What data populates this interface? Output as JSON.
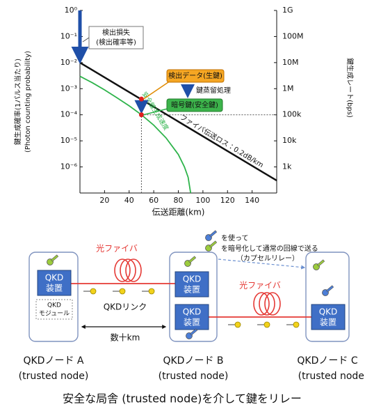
{
  "chart_data": {
    "type": "line",
    "xlabel": "伝送距離(km)",
    "ylabel": [
      "鍵生成確率(1パルス当たり)",
      "(Photon counting probability)"
    ],
    "y2label": "鍵生成レート(bps)",
    "xlim": [
      0,
      160
    ],
    "xticks": [
      20,
      40,
      60,
      80,
      100,
      120,
      140
    ],
    "ylim": [
      1e-07,
      1
    ],
    "ylog": true,
    "yticks": [
      {
        "value": 1,
        "label": "10⁰"
      },
      {
        "value": 0.1,
        "label": "10⁻¹"
      },
      {
        "value": 0.01,
        "label": "10⁻²"
      },
      {
        "value": 0.001,
        "label": "10⁻³"
      },
      {
        "value": 0.0001,
        "label": "10⁻⁴"
      },
      {
        "value": 1e-05,
        "label": "10⁻⁵"
      },
      {
        "value": 1e-06,
        "label": "10⁻⁶"
      }
    ],
    "y2lim": [
      100,
      1000000000
    ],
    "y2log": true,
    "y2ticks": [
      {
        "value": 1000000000,
        "label": "1G"
      },
      {
        "value": 100000000,
        "label": "100M"
      },
      {
        "value": 10000000,
        "label": "10M"
      },
      {
        "value": 1000000,
        "label": "1M"
      },
      {
        "value": 100000,
        "label": "100k"
      },
      {
        "value": 10000,
        "label": "10k"
      },
      {
        "value": 1000,
        "label": "1k"
      }
    ],
    "series": [
      {
        "name": "ファイバ伝送ロス：0.2dB/km",
        "color": "#111111",
        "x": [
          0,
          160
        ],
        "values": [
          0.01,
          3e-07
        ]
      },
      {
        "name": "安全鍵生成速度",
        "color": "#2db34a",
        "x": [
          0,
          10,
          20,
          30,
          40,
          50,
          60,
          70,
          80,
          85,
          88,
          90
        ],
        "values": [
          0.003,
          0.0017,
          0.0009,
          0.00045,
          0.00022,
          0.0001,
          4e-05,
          1.3e-05,
          3e-06,
          1e-06,
          4e-07,
          1e-07
        ]
      }
    ],
    "markers": [
      {
        "x": 50,
        "y": 0.0004,
        "color": "#e02020"
      },
      {
        "x": 50,
        "y": 0.0001,
        "color": "#e02020"
      }
    ],
    "annotations": {
      "loss": [
        "検出損失",
        "(検出確率等)"
      ],
      "raw_key": "検出データ(生鍵)",
      "distill": "鍵蒸留処理",
      "secure_key": "暗号鍵(安全鍵)"
    }
  },
  "diagram": {
    "nodes": [
      {
        "label": "QKDノード A",
        "sub": "(trusted node)"
      },
      {
        "label": "QKDノード B",
        "sub": "(trusted node)"
      },
      {
        "label": "QKDノード C",
        "sub": "(trusted node)"
      }
    ],
    "devices": [
      {
        "top": "QKD",
        "bottom": "装置"
      },
      {
        "top": "QKD",
        "bottom": "装置"
      },
      {
        "top": "QKD",
        "bottom": "装置"
      },
      {
        "top": "QKD",
        "bottom": "装置"
      }
    ],
    "module": [
      "QKD",
      "モジュール"
    ],
    "fibers": [
      "光ファイバ",
      "光ファイバ"
    ],
    "link": "QKDリンク",
    "distance": "数十km",
    "legend": [
      "を使って",
      "を暗号化して通常の回線で送る",
      "（カプセルリレー）"
    ]
  },
  "caption": "安全な局舎 (trusted node)を介して鍵をリレー"
}
